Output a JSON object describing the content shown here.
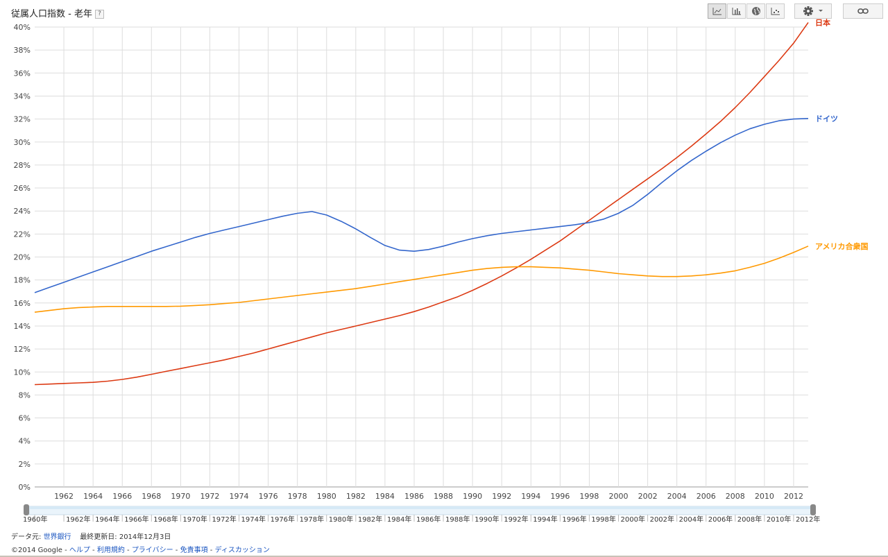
{
  "header": {
    "title": "従属人口指数 - 老年",
    "help_label": "?"
  },
  "toolbar": {
    "line_chart_icon": "line-chart-icon",
    "bar_chart_icon": "bar-chart-icon",
    "map_icon": "globe-icon",
    "scatter_icon": "scatter-icon",
    "settings_icon": "gear-icon",
    "link_icon": "link-icon"
  },
  "chart_data": {
    "type": "line",
    "ylim": [
      0,
      40
    ],
    "yticks": [
      "0%",
      "2%",
      "4%",
      "6%",
      "8%",
      "10%",
      "12%",
      "14%",
      "16%",
      "18%",
      "20%",
      "22%",
      "24%",
      "26%",
      "28%",
      "30%",
      "32%",
      "34%",
      "36%",
      "38%",
      "40%"
    ],
    "xticks": [
      "1962",
      "1964",
      "1966",
      "1968",
      "1970",
      "1972",
      "1974",
      "1976",
      "1978",
      "1980",
      "1982",
      "1984",
      "1986",
      "1988",
      "1990",
      "1992",
      "1994",
      "1996",
      "1998",
      "2000",
      "2002",
      "2004",
      "2006",
      "2008",
      "2010",
      "2012"
    ],
    "x": [
      1960,
      1961,
      1962,
      1963,
      1964,
      1965,
      1966,
      1967,
      1968,
      1969,
      1970,
      1971,
      1972,
      1973,
      1974,
      1975,
      1976,
      1977,
      1978,
      1979,
      1980,
      1981,
      1982,
      1983,
      1984,
      1985,
      1986,
      1987,
      1988,
      1989,
      1990,
      1991,
      1992,
      1993,
      1994,
      1995,
      1996,
      1997,
      1998,
      1999,
      2000,
      2001,
      2002,
      2003,
      2004,
      2005,
      2006,
      2007,
      2008,
      2009,
      2010,
      2011,
      2012,
      2013
    ],
    "series": [
      {
        "name": "日本",
        "color": "#dc3912",
        "values": [
          8.9,
          8.95,
          9.0,
          9.05,
          9.1,
          9.2,
          9.35,
          9.55,
          9.8,
          10.05,
          10.3,
          10.55,
          10.8,
          11.05,
          11.35,
          11.65,
          12.0,
          12.35,
          12.7,
          13.05,
          13.4,
          13.7,
          14.0,
          14.3,
          14.6,
          14.9,
          15.25,
          15.65,
          16.1,
          16.55,
          17.1,
          17.7,
          18.35,
          19.05,
          19.8,
          20.6,
          21.4,
          22.3,
          23.2,
          24.1,
          25.0,
          25.9,
          26.8,
          27.7,
          28.65,
          29.65,
          30.7,
          31.8,
          33.0,
          34.3,
          35.7,
          37.1,
          38.6,
          40.4
        ]
      },
      {
        "name": "ドイツ",
        "color": "#3366cc",
        "values": [
          16.9,
          17.35,
          17.8,
          18.25,
          18.7,
          19.15,
          19.6,
          20.05,
          20.5,
          20.9,
          21.3,
          21.7,
          22.05,
          22.35,
          22.65,
          22.95,
          23.25,
          23.55,
          23.8,
          23.95,
          23.65,
          23.1,
          22.45,
          21.7,
          21.0,
          20.6,
          20.5,
          20.65,
          20.95,
          21.3,
          21.6,
          21.85,
          22.05,
          22.2,
          22.35,
          22.5,
          22.65,
          22.8,
          23.0,
          23.3,
          23.8,
          24.5,
          25.45,
          26.5,
          27.5,
          28.4,
          29.2,
          29.95,
          30.6,
          31.15,
          31.55,
          31.85,
          32.0,
          32.05
        ]
      },
      {
        "name": "アメリカ合衆国",
        "color": "#ff9900",
        "values": [
          15.2,
          15.35,
          15.5,
          15.6,
          15.65,
          15.7,
          15.7,
          15.7,
          15.7,
          15.7,
          15.72,
          15.78,
          15.85,
          15.95,
          16.05,
          16.2,
          16.35,
          16.5,
          16.65,
          16.8,
          16.95,
          17.1,
          17.25,
          17.45,
          17.65,
          17.85,
          18.05,
          18.25,
          18.45,
          18.65,
          18.85,
          19.0,
          19.1,
          19.15,
          19.15,
          19.1,
          19.05,
          18.95,
          18.85,
          18.7,
          18.55,
          18.45,
          18.35,
          18.3,
          18.3,
          18.35,
          18.45,
          18.6,
          18.8,
          19.1,
          19.45,
          19.9,
          20.4,
          20.95
        ]
      }
    ]
  },
  "range_slider": {
    "labels": [
      "1960年",
      "1962年",
      "1964年",
      "1966年",
      "1968年",
      "1970年",
      "1972年",
      "1974年",
      "1976年",
      "1978年",
      "1980年",
      "1982年",
      "1984年",
      "1986年",
      "1988年",
      "1990年",
      "1992年",
      "1994年",
      "1996年",
      "1998年",
      "2000年",
      "2002年",
      "2004年",
      "2006年",
      "2008年",
      "2010年",
      "2012年"
    ]
  },
  "footer": {
    "source_label": "データ元:",
    "source_link": "世界銀行",
    "updated": "最終更新日: 2014年12月3日",
    "copyright": "©2014 Google",
    "sep": " - ",
    "help": "ヘルプ",
    "terms": "利用規約",
    "privacy": "プライバシー",
    "disclaimer": "免責事項",
    "discussion": "ディスカッション"
  }
}
